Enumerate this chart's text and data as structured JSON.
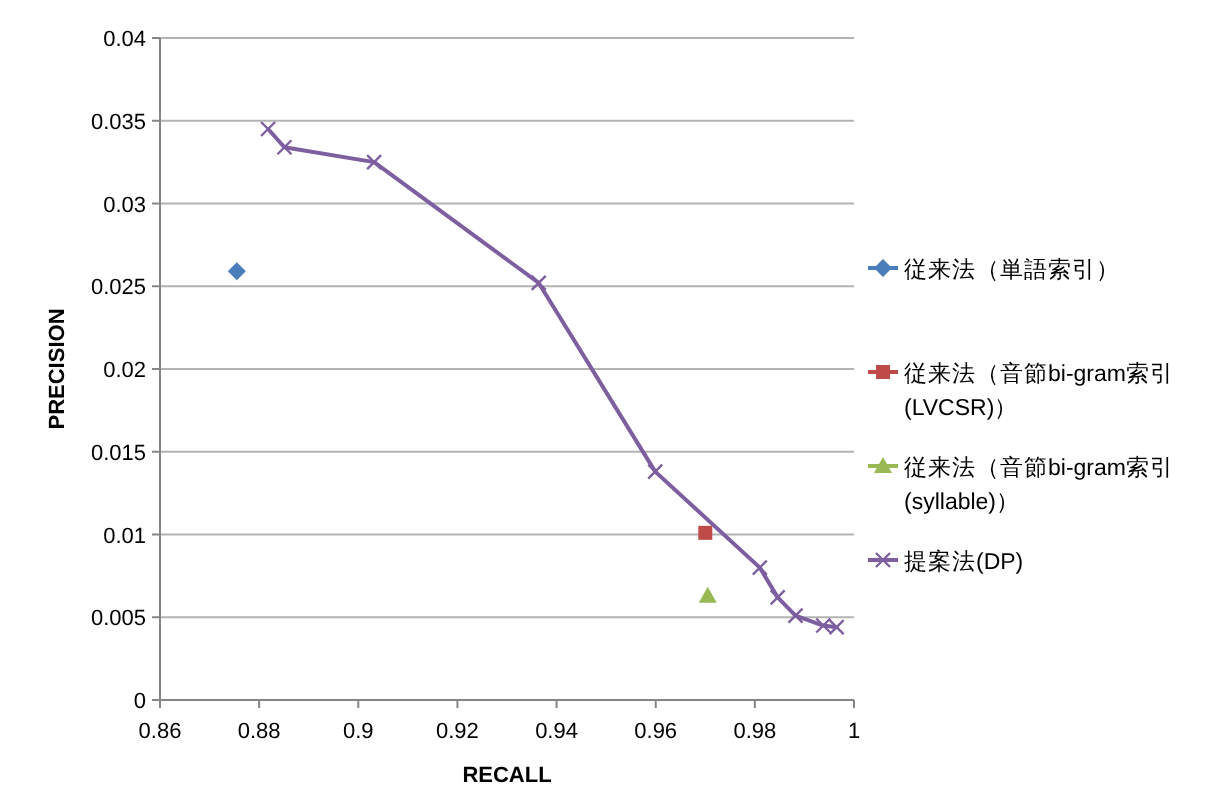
{
  "chart_data": {
    "type": "scatter",
    "xlabel": "RECALL",
    "ylabel": "PRECISION",
    "xlim": [
      0.86,
      1
    ],
    "xticks": [
      0.86,
      0.88,
      0.9,
      0.92,
      0.94,
      0.96,
      0.98,
      1
    ],
    "ylim": [
      0,
      0.04
    ],
    "yticks": [
      0,
      0.005,
      0.01,
      0.015,
      0.02,
      0.025,
      0.03,
      0.035,
      0.04
    ],
    "grid": "y",
    "legend": "right",
    "series": [
      {
        "name": "従来法（単語索引）",
        "marker": "diamond",
        "color": "#4a7ebb",
        "x": [
          0.8755
        ],
        "values": [
          0.0259
        ]
      },
      {
        "name": "従来法（音節bi-gram索引(LVCSR)）",
        "marker": "square",
        "color": "#be4b48",
        "x": [
          0.97
        ],
        "values": [
          0.0101
        ]
      },
      {
        "name": "従来法（音節bi-gram索引(syllable)）",
        "marker": "triangle",
        "color": "#98b954",
        "x": [
          0.9705
        ],
        "values": [
          0.0063
        ]
      },
      {
        "name": "提案法(DP)",
        "type": "line",
        "marker": "cross",
        "color": "#7d5fa0",
        "x": [
          0.8818,
          0.8851,
          0.9032,
          0.9364,
          0.9599,
          0.981,
          0.9846,
          0.9882,
          0.9938,
          0.9965
        ],
        "values": [
          0.0345,
          0.0334,
          0.0325,
          0.0252,
          0.0138,
          0.008,
          0.0062,
          0.0051,
          0.0045,
          0.0044
        ]
      }
    ]
  }
}
